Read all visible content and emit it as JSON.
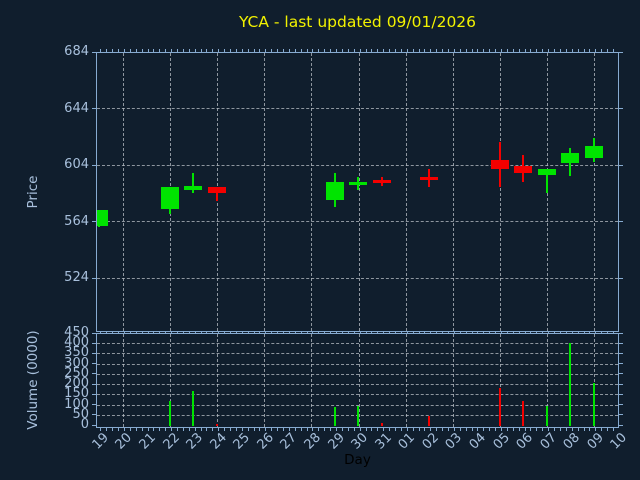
{
  "title": {
    "text": "YCA - last updated 09/01/2026"
  },
  "colors": {
    "background": "#101e2d",
    "spine": "#87abd1",
    "tick_label": "#a8c0dc",
    "grid": "#b9bfc6",
    "up": "#00e400",
    "down": "#f40000",
    "title": "#f2f200",
    "x_axis_title": "#000000"
  },
  "price_axis": {
    "label": "Price",
    "tick_values": [
      684,
      644,
      604,
      564,
      524
    ]
  },
  "volume_axis": {
    "label": "Volume (0000)",
    "tick_values": [
      450,
      400,
      350,
      300,
      250,
      200,
      150,
      100,
      50,
      0
    ],
    "max": 450
  },
  "x_axis": {
    "label": "Day",
    "tick_labels": [
      "19",
      "20",
      "21",
      "22",
      "23",
      "24",
      "25",
      "26",
      "27",
      "28",
      "29",
      "30",
      "31",
      "01",
      "02",
      "03",
      "04",
      "05",
      "06",
      "07",
      "08",
      "09",
      "10"
    ],
    "gridline_day_indices": [
      1,
      3,
      5,
      7,
      9,
      11,
      13,
      15,
      17,
      19,
      21
    ]
  },
  "chart_data": {
    "type": "candlestick+volume-bar",
    "title": "YCA - last updated 09/01/2026",
    "xlabel": "Day",
    "ylabel_price": "Price",
    "ylabel_volume": "Volume (0000)",
    "x_categories": [
      "19",
      "20",
      "21",
      "22",
      "23",
      "24",
      "25",
      "26",
      "27",
      "28",
      "29",
      "30",
      "31",
      "01",
      "02",
      "03",
      "04",
      "05",
      "06",
      "07",
      "08",
      "09",
      "10"
    ],
    "price_ylim": [
      487,
      684
    ],
    "volume_ylim": [
      0,
      450
    ],
    "grid": "dashed, every second day vertically; every tick horizontally",
    "candles": [
      {
        "day": "19",
        "open": 561,
        "high": 572,
        "low": 560,
        "close": 572,
        "volume": 2,
        "direction": "up"
      },
      {
        "day": "22",
        "open": 573,
        "high": 588,
        "low": 569,
        "close": 588,
        "volume": 123,
        "direction": "up"
      },
      {
        "day": "23",
        "open": 586,
        "high": 598,
        "low": 584,
        "close": 589,
        "volume": 170,
        "direction": "up"
      },
      {
        "day": "24",
        "open": 588,
        "high": 588,
        "low": 578,
        "close": 584,
        "volume": 12,
        "direction": "down"
      },
      {
        "day": "29",
        "open": 579,
        "high": 598,
        "low": 574,
        "close": 592,
        "volume": 91,
        "direction": "up"
      },
      {
        "day": "30",
        "open": 590,
        "high": 595,
        "low": 586,
        "close": 592,
        "volume": 99,
        "direction": "up"
      },
      {
        "day": "31",
        "open": 593,
        "high": 595,
        "low": 589,
        "close": 591,
        "volume": 14,
        "direction": "down"
      },
      {
        "day": "02",
        "open": 595,
        "high": 601,
        "low": 588,
        "close": 593,
        "volume": 51,
        "direction": "down"
      },
      {
        "day": "05",
        "open": 607,
        "high": 620,
        "low": 588,
        "close": 601,
        "volume": 188,
        "direction": "down"
      },
      {
        "day": "06",
        "open": 603,
        "high": 611,
        "low": 592,
        "close": 598,
        "volume": 124,
        "direction": "down"
      },
      {
        "day": "07",
        "open": 597,
        "high": 601,
        "low": 584,
        "close": 601,
        "volume": 96,
        "direction": "up"
      },
      {
        "day": "08",
        "open": 605,
        "high": 616,
        "low": 596,
        "close": 612,
        "volume": 407,
        "direction": "up"
      },
      {
        "day": "09",
        "open": 609,
        "high": 623,
        "low": 606,
        "close": 617,
        "volume": 210,
        "direction": "up"
      }
    ]
  }
}
